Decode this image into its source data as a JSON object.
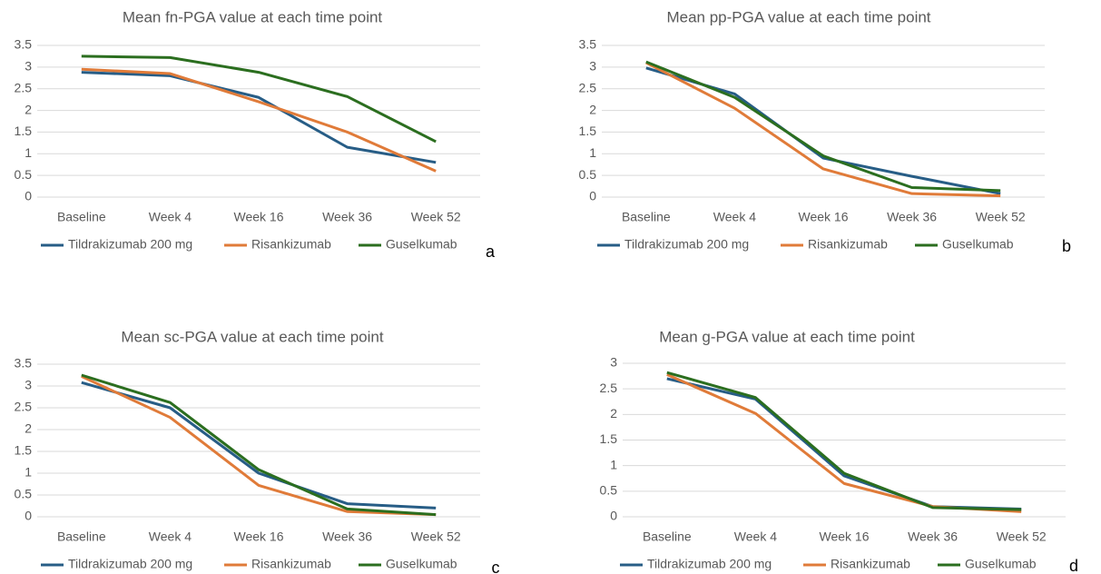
{
  "chart_data": [
    {
      "type": "line",
      "title": "Mean fn-PGA value at each time point",
      "label": "a",
      "categories": [
        "Baseline",
        "Week 4",
        "Week 16",
        "Week 36",
        "Week 52"
      ],
      "series": [
        {
          "name": "Tildrakizumab 200 mg",
          "color": "#275d86",
          "values": [
            2.88,
            2.8,
            2.3,
            1.15,
            0.8
          ]
        },
        {
          "name": "Risankizumab",
          "color": "#e07b39",
          "values": [
            2.95,
            2.85,
            2.2,
            1.5,
            0.6
          ]
        },
        {
          "name": "Guselkumab",
          "color": "#2b6e1f",
          "values": [
            3.25,
            3.22,
            2.88,
            2.32,
            1.28
          ]
        }
      ],
      "ylim": [
        0,
        3.5
      ],
      "yticks": [
        0,
        0.5,
        1,
        1.5,
        2,
        2.5,
        3,
        3.5
      ],
      "grid": true
    },
    {
      "type": "line",
      "title": "Mean pp-PGA value at each time point",
      "label": "b",
      "categories": [
        "Baseline",
        "Week 4",
        "Week 16",
        "Week 36",
        "Week 52"
      ],
      "series": [
        {
          "name": "Tildrakizumab 200 mg",
          "color": "#275d86",
          "values": [
            2.98,
            2.38,
            0.9,
            0.48,
            0.08
          ]
        },
        {
          "name": "Risankizumab",
          "color": "#e07b39",
          "values": [
            3.1,
            2.05,
            0.65,
            0.08,
            0.03
          ]
        },
        {
          "name": "Guselkumab",
          "color": "#2b6e1f",
          "values": [
            3.12,
            2.3,
            0.95,
            0.22,
            0.15
          ]
        }
      ],
      "ylim": [
        0,
        3.5
      ],
      "yticks": [
        0,
        0.5,
        1,
        1.5,
        2,
        2.5,
        3,
        3.5
      ],
      "grid": true
    },
    {
      "type": "line",
      "title": "Mean sc-PGA value at each time point",
      "label": "c",
      "categories": [
        "Baseline",
        "Week 4",
        "Week 16",
        "Week 36",
        "Week 52"
      ],
      "series": [
        {
          "name": "Tildrakizumab 200 mg",
          "color": "#275d86",
          "values": [
            3.08,
            2.5,
            1.0,
            0.3,
            0.2
          ]
        },
        {
          "name": "Risankizumab",
          "color": "#e07b39",
          "values": [
            3.22,
            2.28,
            0.72,
            0.12,
            0.05
          ]
        },
        {
          "name": "Guselkumab",
          "color": "#2b6e1f",
          "values": [
            3.25,
            2.62,
            1.08,
            0.18,
            0.05
          ]
        }
      ],
      "ylim": [
        0,
        3.5
      ],
      "yticks": [
        0,
        0.5,
        1,
        1.5,
        2,
        2.5,
        3,
        3.5
      ],
      "grid": true
    },
    {
      "type": "line",
      "title": "Mean g-PGA value at each time point",
      "label": "d",
      "categories": [
        "Baseline",
        "Week 4",
        "Week 16",
        "Week 36",
        "Week 52"
      ],
      "series": [
        {
          "name": "Tildrakizumab 200 mg",
          "color": "#275d86",
          "values": [
            2.7,
            2.3,
            0.8,
            0.2,
            0.15
          ]
        },
        {
          "name": "Risankizumab",
          "color": "#e07b39",
          "values": [
            2.78,
            2.02,
            0.65,
            0.2,
            0.1
          ]
        },
        {
          "name": "Guselkumab",
          "color": "#2b6e1f",
          "values": [
            2.82,
            2.33,
            0.85,
            0.18,
            0.14
          ]
        }
      ],
      "ylim": [
        0,
        3
      ],
      "yticks": [
        0,
        0.5,
        1,
        1.5,
        2,
        2.5,
        3
      ],
      "grid": true
    }
  ]
}
